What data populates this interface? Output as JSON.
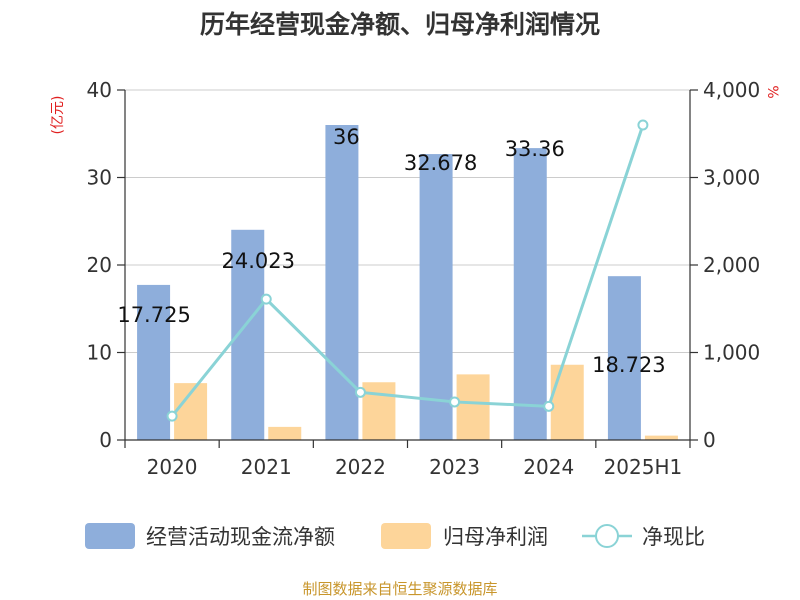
{
  "chart_data": {
    "type": "bar",
    "title": "历年经营现金净额、归母净利润情况",
    "categories": [
      "2020",
      "2021",
      "2022",
      "2023",
      "2024",
      "2025H1"
    ],
    "series": [
      {
        "name": "经营活动现金流净额",
        "kind": "bar",
        "axis": "left",
        "color": "#8eaedb",
        "values": [
          17.725,
          24.023,
          36,
          32.678,
          33.36,
          18.723
        ],
        "labels": [
          "17.725",
          "24.023",
          "36",
          "32.678",
          "33.36",
          "18.723"
        ]
      },
      {
        "name": "归母净利润",
        "kind": "bar",
        "axis": "left",
        "color": "#fdd59a",
        "values": [
          6.5,
          1.5,
          6.6,
          7.5,
          8.6,
          0.5
        ]
      },
      {
        "name": "净现比",
        "kind": "line",
        "axis": "right",
        "color": "#8ad3d6",
        "values": [
          273,
          1610,
          545,
          435,
          385,
          3600
        ]
      }
    ],
    "y_left": {
      "label": "(亿元)",
      "min": 0,
      "max": 40,
      "ticks": [
        "0",
        "10",
        "20",
        "30",
        "40"
      ]
    },
    "y_right": {
      "label": "%",
      "min": 0,
      "max": 4000,
      "ticks": [
        "0",
        "1,000",
        "2,000",
        "3,000",
        "4,000"
      ]
    },
    "grid": true,
    "legend_position": "bottom",
    "source": "制图数据来自恒生聚源数据库",
    "colors": {
      "axis_label": "#e02020",
      "source": "#c8962c"
    }
  }
}
